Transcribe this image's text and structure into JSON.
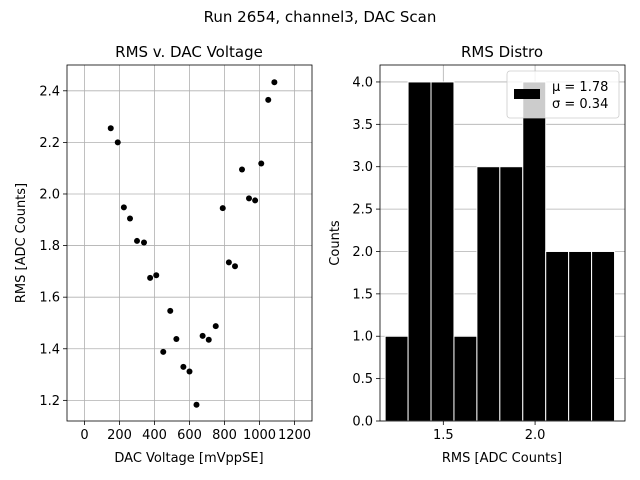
{
  "suptitle": "Run 2654, channel3, DAC Scan",
  "chart_data": [
    {
      "type": "scatter",
      "title": "RMS v. DAC Voltage",
      "xlabel": "DAC Voltage [mVppSE]",
      "ylabel": "RMS [ADC Counts]",
      "xlim": [
        -100,
        1300
      ],
      "ylim": [
        1.12,
        2.5
      ],
      "xticks": [
        0,
        200,
        400,
        600,
        800,
        1000,
        1200
      ],
      "yticks": [
        1.2,
        1.4,
        1.6,
        1.8,
        2.0,
        2.2,
        2.4
      ],
      "grid": true,
      "marker_color": "#000000",
      "points": [
        {
          "x": 150,
          "y": 2.255
        },
        {
          "x": 190,
          "y": 2.2
        },
        {
          "x": 225,
          "y": 1.948
        },
        {
          "x": 260,
          "y": 1.905
        },
        {
          "x": 300,
          "y": 1.818
        },
        {
          "x": 340,
          "y": 1.812
        },
        {
          "x": 375,
          "y": 1.675
        },
        {
          "x": 410,
          "y": 1.685
        },
        {
          "x": 450,
          "y": 1.388
        },
        {
          "x": 490,
          "y": 1.547
        },
        {
          "x": 525,
          "y": 1.438
        },
        {
          "x": 565,
          "y": 1.33
        },
        {
          "x": 600,
          "y": 1.312
        },
        {
          "x": 640,
          "y": 1.183
        },
        {
          "x": 675,
          "y": 1.45
        },
        {
          "x": 710,
          "y": 1.435
        },
        {
          "x": 750,
          "y": 1.488
        },
        {
          "x": 790,
          "y": 1.945
        },
        {
          "x": 825,
          "y": 1.735
        },
        {
          "x": 860,
          "y": 1.72
        },
        {
          "x": 900,
          "y": 2.095
        },
        {
          "x": 940,
          "y": 1.983
        },
        {
          "x": 975,
          "y": 1.975
        },
        {
          "x": 1010,
          "y": 2.118
        },
        {
          "x": 1050,
          "y": 2.365
        },
        {
          "x": 1085,
          "y": 2.433
        }
      ]
    },
    {
      "type": "bar",
      "title": "RMS Distro",
      "xlabel": "RMS [ADC Counts]",
      "ylabel": "Counts",
      "xlim": [
        1.155,
        2.49
      ],
      "ylim": [
        0.0,
        4.2
      ],
      "xticks": [
        1.5,
        2.0
      ],
      "xtick_labels": [
        "1.5",
        "2.0"
      ],
      "yticks": [
        0.0,
        0.5,
        1.0,
        1.5,
        2.0,
        2.5,
        3.0,
        3.5,
        4.0
      ],
      "ytick_labels": [
        "0.0",
        "0.5",
        "1.0",
        "1.5",
        "2.0",
        "2.5",
        "3.0",
        "3.5",
        "4.0"
      ],
      "grid": true,
      "bar_color": "#000000",
      "bar_edge_color": "#ffffff",
      "bins": [
        {
          "x0": 1.183,
          "x1": 1.308,
          "count": 1
        },
        {
          "x0": 1.308,
          "x1": 1.433,
          "count": 4
        },
        {
          "x0": 1.433,
          "x1": 1.558,
          "count": 4
        },
        {
          "x0": 1.558,
          "x1": 1.683,
          "count": 1
        },
        {
          "x0": 1.683,
          "x1": 1.808,
          "count": 3
        },
        {
          "x0": 1.808,
          "x1": 1.933,
          "count": 3
        },
        {
          "x0": 1.933,
          "x1": 2.058,
          "count": 4
        },
        {
          "x0": 2.058,
          "x1": 2.183,
          "count": 2
        },
        {
          "x0": 2.183,
          "x1": 2.308,
          "count": 2
        },
        {
          "x0": 2.308,
          "x1": 2.433,
          "count": 2
        }
      ],
      "legend": {
        "placement": "upper-right",
        "lines": [
          "μ = 1.78",
          "σ = 0.34"
        ]
      }
    }
  ]
}
